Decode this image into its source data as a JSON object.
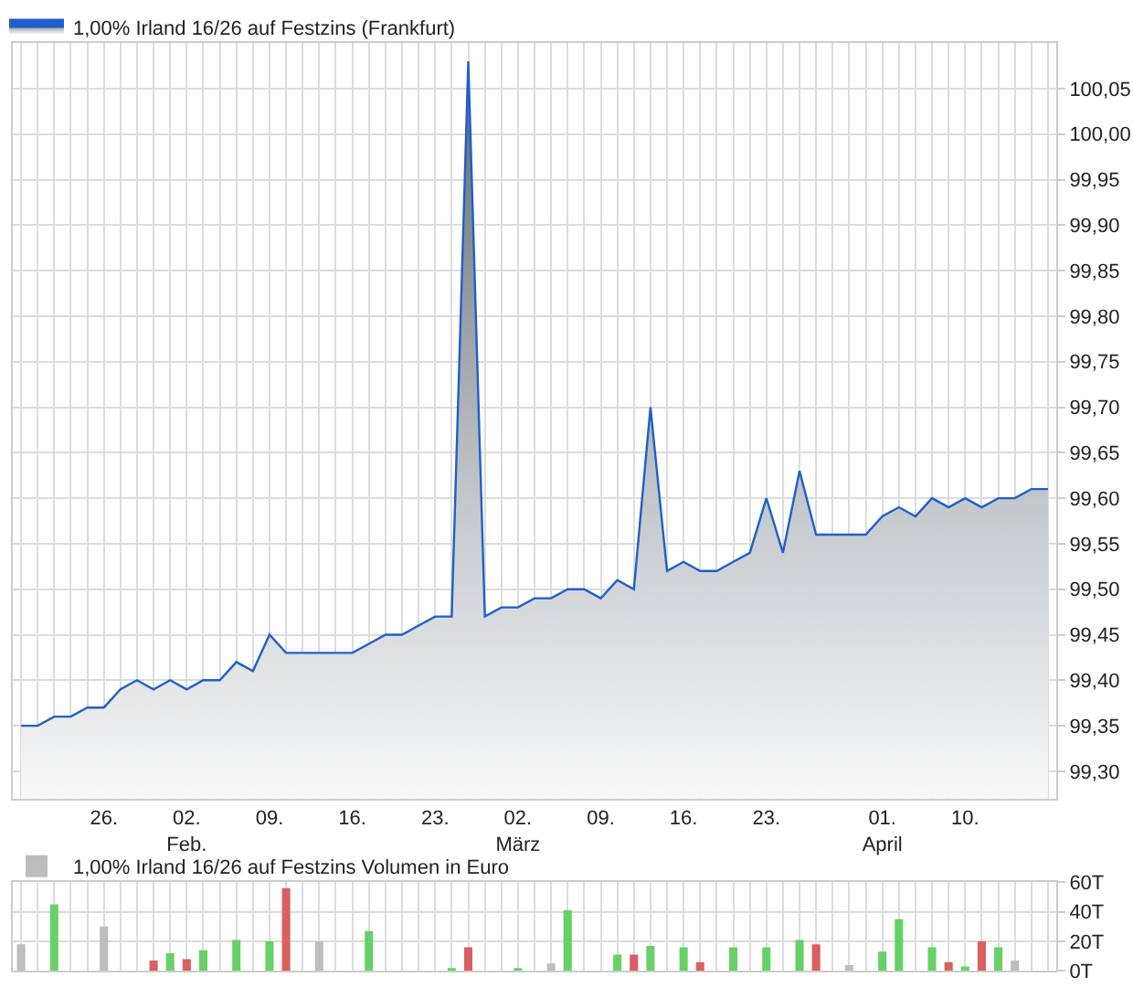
{
  "chart_data": [
    {
      "type": "area",
      "legend": "top left",
      "grid": true,
      "ylim": [
        99.27,
        100.1
      ],
      "yticks": [
        {
          "value": 99.3,
          "label": "99,30"
        },
        {
          "value": 99.35,
          "label": "99,35"
        },
        {
          "value": 99.4,
          "label": "99,40"
        },
        {
          "value": 99.45,
          "label": "99,45"
        },
        {
          "value": 99.5,
          "label": "99,50"
        },
        {
          "value": 99.55,
          "label": "99,55"
        },
        {
          "value": 99.6,
          "label": "99,60"
        },
        {
          "value": 99.65,
          "label": "99,65"
        },
        {
          "value": 99.7,
          "label": "99,70"
        },
        {
          "value": 99.75,
          "label": "99,75"
        },
        {
          "value": 99.8,
          "label": "99,80"
        },
        {
          "value": 99.85,
          "label": "99,85"
        },
        {
          "value": 99.9,
          "label": "99,90"
        },
        {
          "value": 99.95,
          "label": "99,95"
        },
        {
          "value": 100.0,
          "label": "100,00"
        },
        {
          "value": 100.05,
          "label": "100,05"
        }
      ],
      "categories": [
        null,
        null,
        null,
        null,
        null,
        "26.",
        null,
        null,
        null,
        null,
        "02.\nFeb.",
        null,
        null,
        null,
        null,
        "09.",
        null,
        null,
        null,
        null,
        "16.",
        null,
        null,
        null,
        null,
        "23.",
        null,
        null,
        null,
        null,
        "02.\nMärz",
        null,
        null,
        null,
        null,
        "09.",
        null,
        null,
        null,
        null,
        "16.",
        null,
        null,
        null,
        null,
        "23.",
        null,
        null,
        null,
        null,
        null,
        null,
        "01.\nApril",
        null,
        null,
        null,
        null,
        "10.",
        null,
        null,
        null,
        null,
        null
      ],
      "series": [
        {
          "name": "1,00% Irland 16/26 auf Festzins (Frankfurt)",
          "color": "#1f5fcc",
          "values": [
            99.35,
            99.35,
            99.36,
            99.36,
            99.37,
            99.37,
            99.39,
            99.4,
            99.39,
            99.4,
            99.39,
            99.4,
            99.4,
            99.42,
            99.41,
            99.45,
            99.43,
            99.43,
            99.43,
            99.43,
            99.43,
            99.44,
            99.45,
            99.45,
            99.46,
            99.47,
            99.47,
            100.08,
            99.47,
            99.48,
            99.48,
            99.49,
            99.49,
            99.5,
            99.5,
            99.49,
            99.51,
            99.5,
            99.7,
            99.52,
            99.53,
            99.52,
            99.52,
            99.53,
            99.54,
            99.6,
            99.54,
            99.63,
            99.56,
            99.56,
            99.56,
            99.56,
            99.58,
            99.59,
            99.58,
            99.6,
            99.59,
            99.6,
            99.59,
            99.6,
            99.6,
            99.61,
            99.61
          ]
        }
      ]
    },
    {
      "type": "bar",
      "legend": "top left",
      "grid": true,
      "tick_labels": "y",
      "ylim": [
        0,
        60
      ],
      "yticks": [
        {
          "value": 0,
          "label": "0T"
        },
        {
          "value": 20,
          "label": "20T"
        },
        {
          "value": 40,
          "label": "40T"
        },
        {
          "value": 60,
          "label": "60T"
        }
      ],
      "categories": [
        null,
        null,
        null,
        null,
        null,
        null,
        null,
        null,
        null,
        null,
        null,
        null,
        null,
        null,
        null,
        null,
        null,
        null,
        null,
        null,
        null,
        null,
        null,
        null,
        null,
        null,
        null,
        null,
        null,
        null,
        null,
        null,
        null,
        null,
        null,
        null,
        null,
        null,
        null,
        null,
        null,
        null,
        null,
        null,
        null,
        null,
        null,
        null,
        null,
        null,
        null,
        null,
        null,
        null,
        null,
        null,
        null,
        null,
        null,
        null,
        null,
        null,
        null
      ],
      "series": [
        {
          "name": "1,00% Irland 16/26 auf Festzins Volumen in Euro",
          "color": "#bdbdbd",
          "values": [
            18,
            null,
            45,
            null,
            null,
            30,
            null,
            null,
            7,
            12,
            8,
            14,
            null,
            21,
            null,
            20,
            56,
            null,
            20,
            null,
            null,
            27,
            null,
            null,
            null,
            null,
            1,
            16,
            null,
            null,
            1,
            null,
            5,
            41,
            null,
            null,
            11,
            11,
            17,
            null,
            16,
            6,
            null,
            16,
            null,
            16,
            null,
            21,
            18,
            null,
            4,
            null,
            13,
            35,
            null,
            16,
            6,
            3,
            20,
            16,
            7,
            null,
            null
          ],
          "colors": [
            "#bdbdbd",
            null,
            "#66d166",
            null,
            null,
            "#bdbdbd",
            null,
            null,
            "#d9605f",
            "#66d166",
            "#d9605f",
            "#66d166",
            null,
            "#66d166",
            null,
            "#66d166",
            "#d9605f",
            null,
            "#bdbdbd",
            null,
            null,
            "#66d166",
            null,
            null,
            null,
            null,
            "#66d166",
            "#d9605f",
            null,
            null,
            "#66d166",
            null,
            "#bdbdbd",
            "#66d166",
            null,
            null,
            "#66d166",
            "#d9605f",
            "#66d166",
            null,
            "#66d166",
            "#d9605f",
            null,
            "#66d166",
            null,
            "#66d166",
            null,
            "#66d166",
            "#d9605f",
            null,
            "#bdbdbd",
            null,
            "#66d166",
            "#66d166",
            null,
            "#66d166",
            "#d9605f",
            "#66d166",
            "#d9605f",
            "#66d166",
            "#bdbdbd",
            null,
            null
          ]
        }
      ]
    }
  ]
}
